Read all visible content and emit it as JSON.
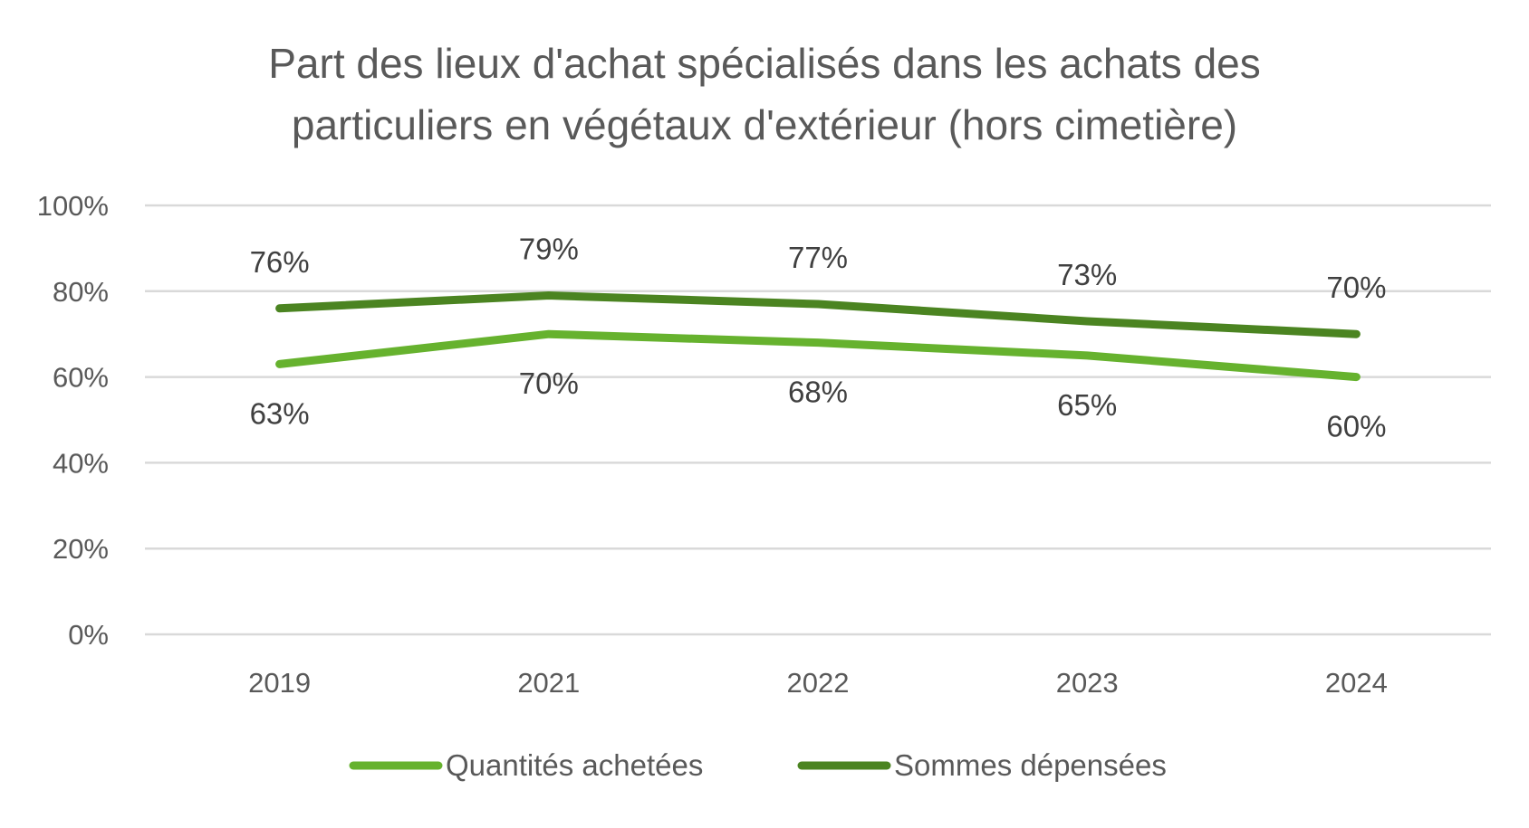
{
  "chart_data": {
    "type": "line",
    "title": [
      "Part des lieux d'achat spécialisés dans les achats des",
      "particuliers en végétaux d'extérieur (hors cimetière)"
    ],
    "categories": [
      "2019",
      "2021",
      "2022",
      "2023",
      "2024"
    ],
    "ylim": [
      0,
      100
    ],
    "yticks": [
      "0%",
      "20%",
      "40%",
      "60%",
      "80%",
      "100%"
    ],
    "grid": true,
    "legend_position": "bottom",
    "series": [
      {
        "name": "Quantités achetées",
        "values": [
          63,
          70,
          68,
          65,
          60
        ],
        "labels": [
          "63%",
          "70%",
          "68%",
          "65%",
          "60%"
        ],
        "color": "#66b22e",
        "label_position": "below"
      },
      {
        "name": "Sommes dépensées",
        "values": [
          76,
          79,
          77,
          73,
          70
        ],
        "labels": [
          "76%",
          "79%",
          "77%",
          "73%",
          "70%"
        ],
        "color": "#4b8421",
        "label_position": "above"
      }
    ]
  }
}
